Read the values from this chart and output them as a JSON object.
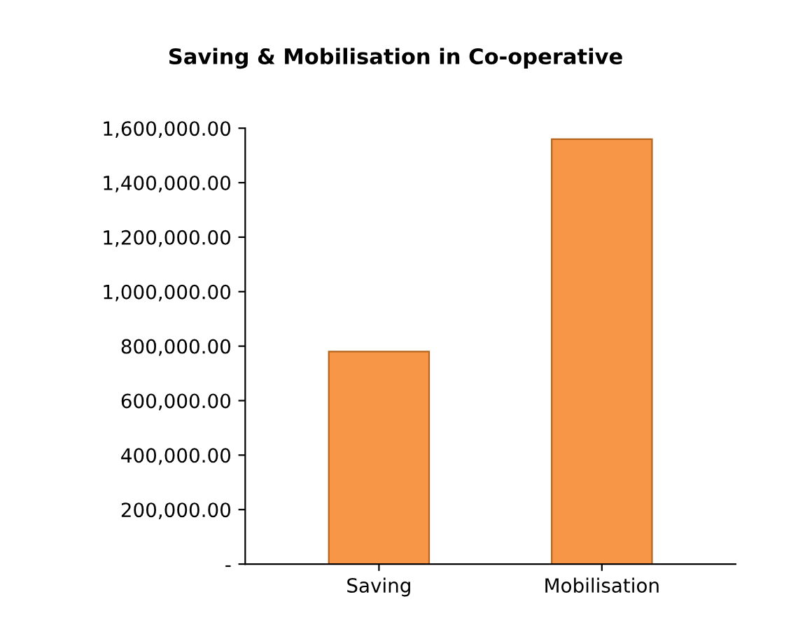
{
  "chart_data": {
    "type": "bar",
    "title": "Saving & Mobilisation in Co-operative",
    "categories": [
      "Saving",
      "Mobilisation"
    ],
    "values": [
      780000,
      1560000
    ],
    "color": "#f79646",
    "ylim": [
      0,
      1600000
    ],
    "yticks": [
      {
        "value": 0,
        "label": "-"
      },
      {
        "value": 200000,
        "label": "200,000.00"
      },
      {
        "value": 400000,
        "label": "400,000.00"
      },
      {
        "value": 600000,
        "label": "600,000.00"
      },
      {
        "value": 800000,
        "label": "800,000.00"
      },
      {
        "value": 1000000,
        "label": "1,000,000.00"
      },
      {
        "value": 1200000,
        "label": "1,200,000.00"
      },
      {
        "value": 1400000,
        "label": "1,400,000.00"
      },
      {
        "value": 1600000,
        "label": "1,600,000.00"
      }
    ],
    "grid": false
  }
}
